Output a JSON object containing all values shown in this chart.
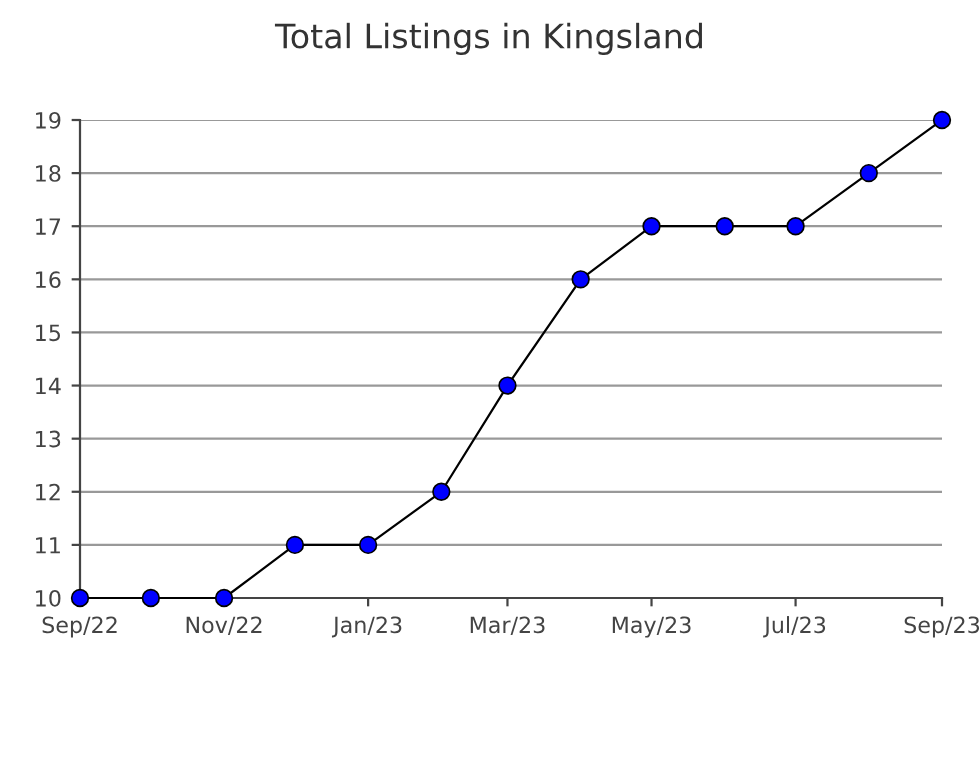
{
  "chart_data": {
    "type": "line",
    "title": "Total Listings in Kingsland",
    "x": [
      "2022-09",
      "2022-10",
      "2022-11",
      "2022-12",
      "2023-01",
      "2023-02",
      "2023-03",
      "2023-04",
      "2023-05",
      "2023-06",
      "2023-07",
      "2023-08",
      "2023-09"
    ],
    "series": [
      {
        "color": "#0000ff",
        "values": [
          10,
          10,
          10,
          11,
          11,
          12,
          14,
          16,
          17,
          17,
          17,
          18,
          19
        ]
      }
    ],
    "xlim": [
      "2022-09",
      "2023-09"
    ],
    "xticks": [
      {
        "value": "2022-09",
        "label": "Sep/22"
      },
      {
        "value": "2022-11",
        "label": "Nov/22"
      },
      {
        "value": "2023-01",
        "label": "Jan/23"
      },
      {
        "value": "2023-03",
        "label": "Mar/23"
      },
      {
        "value": "2023-05",
        "label": "May/23"
      },
      {
        "value": "2023-07",
        "label": "Jul/23"
      },
      {
        "value": "2023-09",
        "label": "Sep/23"
      }
    ],
    "ylim": [
      10,
      19
    ],
    "yticks": [
      10,
      11,
      12,
      13,
      14,
      15,
      16,
      17,
      18,
      19
    ],
    "grid": "y",
    "marker": "circle",
    "line_style": "solid"
  }
}
